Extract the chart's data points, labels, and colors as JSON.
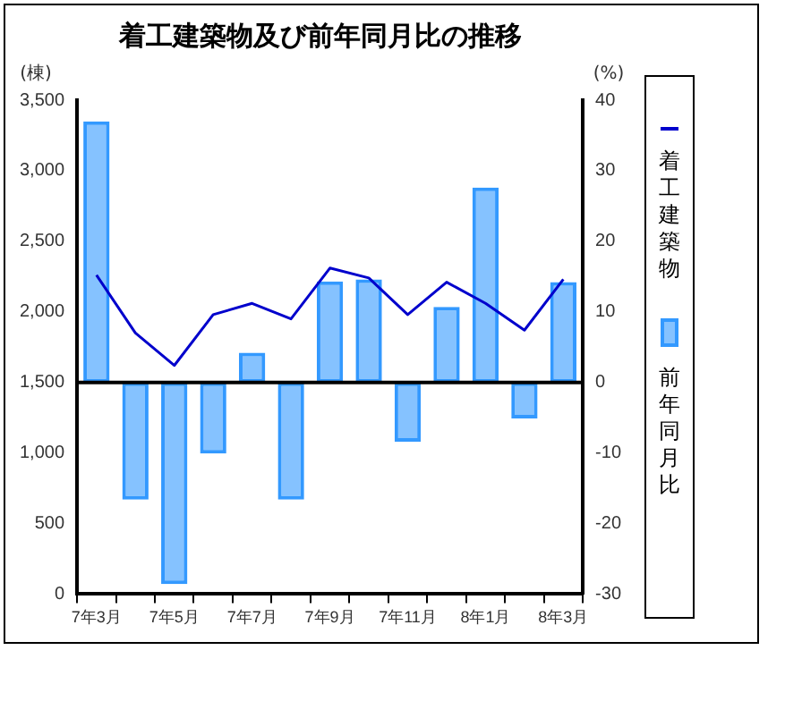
{
  "chart_data": {
    "type": "bar",
    "title": "着工建築物及び前年同月比の推移",
    "ylabel": "(棟)",
    "y2label": "(%)",
    "categories": [
      "7年3月",
      null,
      "7年5月",
      null,
      "7年7月",
      null,
      "7年9月",
      null,
      "7年11月",
      null,
      "8年1月",
      null,
      "8年3月"
    ],
    "series": [
      {
        "name": "着工建築物",
        "type": "line",
        "axis": "y",
        "color": "#0000cc",
        "values": [
          2260,
          1850,
          1620,
          1980,
          2060,
          1950,
          2310,
          2240,
          1980,
          2210,
          2060,
          1870,
          2230
        ]
      },
      {
        "name": "前年同月比",
        "axis": "y2",
        "color": "#3399ff",
        "values": [
          37,
          -16.6,
          -28.6,
          -10.1,
          4.2,
          -16.6,
          14.3,
          14.6,
          -8.4,
          10.7,
          27.6,
          -5.1,
          14.2
        ]
      }
    ],
    "ylim": [
      0,
      3500
    ],
    "yticks": [
      {
        "value": 0,
        "label": "0"
      },
      {
        "value": 500,
        "label": "500"
      },
      {
        "value": 1000,
        "label": "1,000"
      },
      {
        "value": 1500,
        "label": "1,500"
      },
      {
        "value": 2000,
        "label": "2,000"
      },
      {
        "value": 2500,
        "label": "2,500"
      },
      {
        "value": 3000,
        "label": "3,000"
      },
      {
        "value": 3500,
        "label": "3,500"
      }
    ],
    "y2lim": [
      -30,
      40
    ],
    "y2ticks": [
      -30,
      -20,
      -10,
      0,
      10,
      20,
      30,
      40
    ],
    "ref_lines": [
      {
        "axis": "y2",
        "value": 0,
        "color": "#000000"
      }
    ],
    "legend": "right",
    "marker": "none"
  }
}
